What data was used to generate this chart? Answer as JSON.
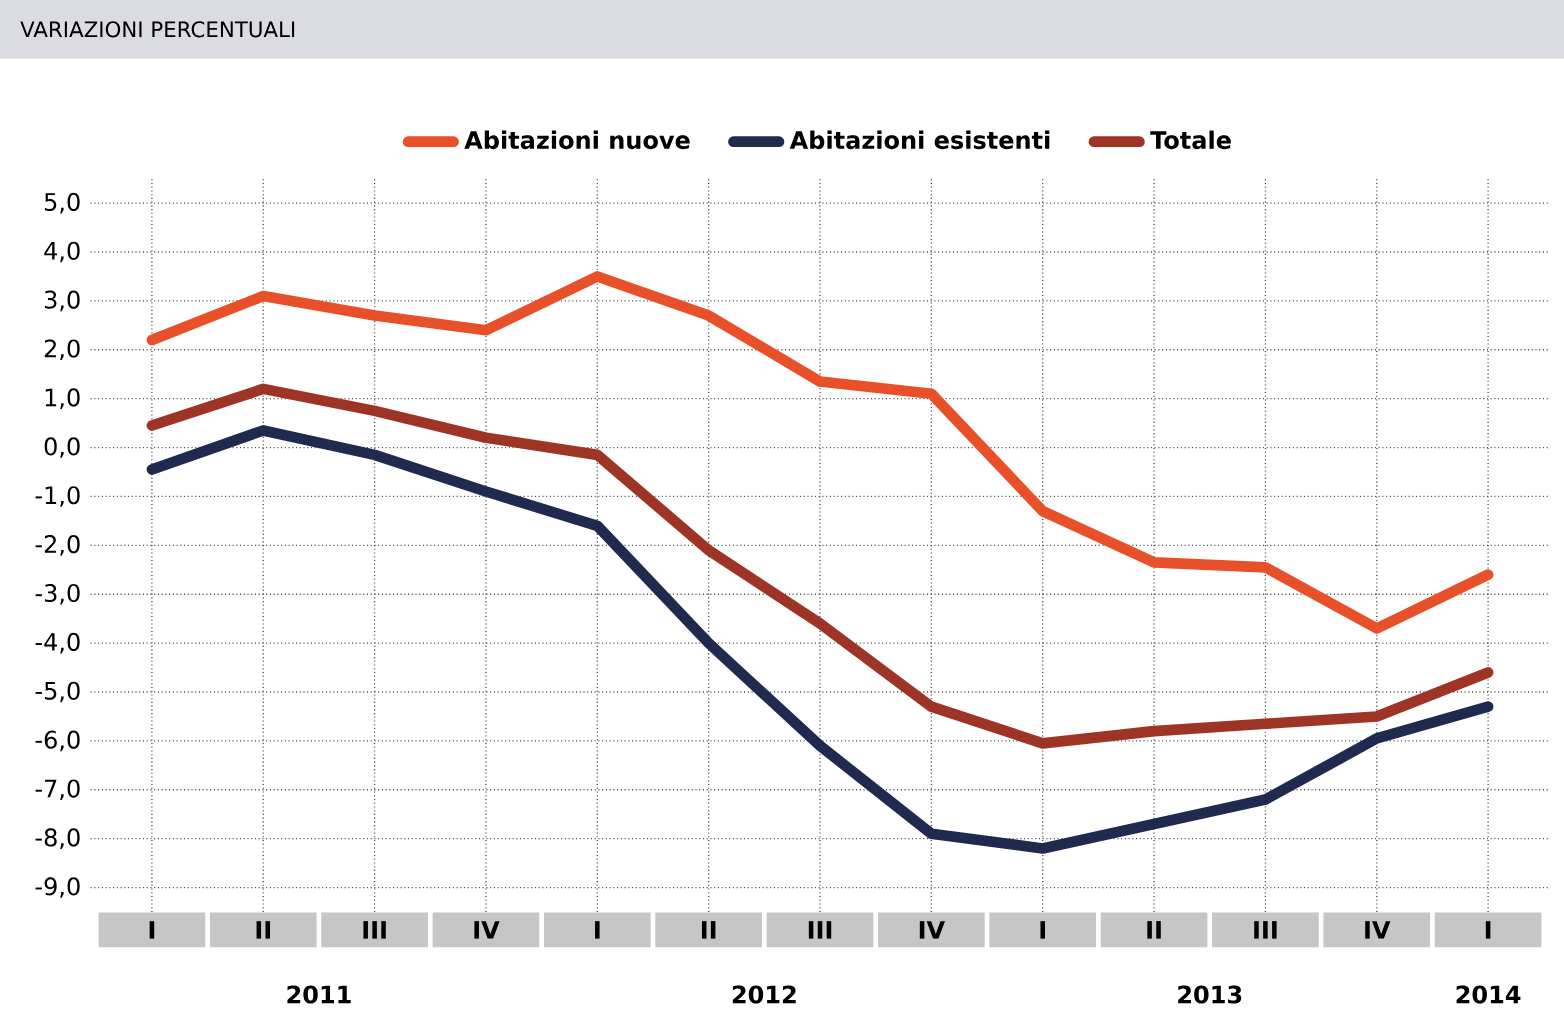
{
  "chart_data": {
    "type": "line",
    "title": "VARIAZIONI PERCENTUALI",
    "categories": [
      "I",
      "II",
      "III",
      "IV",
      "I",
      "II",
      "III",
      "IV",
      "I",
      "II",
      "III",
      "IV",
      "I"
    ],
    "series": [
      {
        "name": "Abitazioni nuove",
        "color": "#e8502a",
        "values": [
          2.2,
          3.1,
          2.7,
          2.4,
          3.5,
          2.7,
          1.35,
          1.1,
          -1.3,
          -2.35,
          -2.45,
          -3.7,
          -2.6
        ]
      },
      {
        "name": "Abitazioni esistenti",
        "color": "#1f2a4e",
        "values": [
          -0.45,
          0.35,
          -0.15,
          -0.9,
          -1.6,
          -4.0,
          -6.1,
          -7.9,
          -8.2,
          -7.7,
          -7.2,
          -5.95,
          -5.3
        ]
      },
      {
        "name": "Totale",
        "color": "#9e3426",
        "values": [
          0.45,
          1.2,
          0.75,
          0.2,
          -0.15,
          -2.1,
          -3.6,
          -5.3,
          -6.05,
          -5.8,
          -5.65,
          -5.5,
          -4.6
        ]
      }
    ],
    "ylim": [
      -9.5,
      5.5
    ],
    "yticks": [
      {
        "value": 5,
        "label": "5,0"
      },
      {
        "value": 4,
        "label": "4,0"
      },
      {
        "value": 3,
        "label": "3,0"
      },
      {
        "value": 2,
        "label": "2,0"
      },
      {
        "value": 1,
        "label": "1,0"
      },
      {
        "value": 0,
        "label": "0,0"
      },
      {
        "value": -1,
        "label": "-1,0"
      },
      {
        "value": -2,
        "label": "-2,0"
      },
      {
        "value": -3,
        "label": "-3,0"
      },
      {
        "value": -4,
        "label": "-4,0"
      },
      {
        "value": -5,
        "label": "-5,0"
      },
      {
        "value": -6,
        "label": "-6,0"
      },
      {
        "value": -7,
        "label": "-7,0"
      },
      {
        "value": -8,
        "label": "-8,0"
      },
      {
        "value": -9,
        "label": "-9,0"
      }
    ],
    "annotations": [
      "2011",
      "2012",
      "2013",
      "2014"
    ],
    "grid": true,
    "legend": "top",
    "marker": "none",
    "line_style": "solid"
  }
}
